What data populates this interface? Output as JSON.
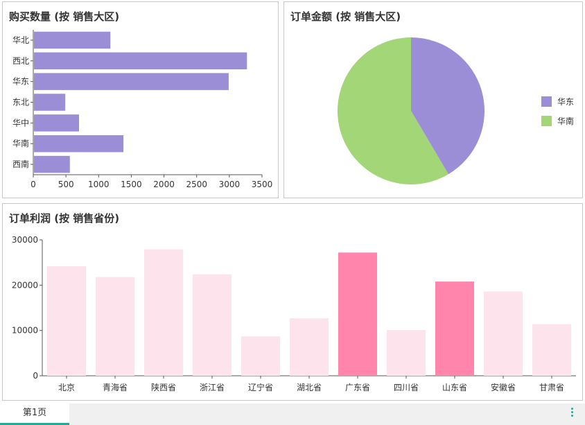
{
  "chart_data": [
    {
      "type": "bar",
      "orientation": "horizontal",
      "title": "购买数量 (按 销售大区)",
      "categories": [
        "华北",
        "西北",
        "华东",
        "东北",
        "华中",
        "华南",
        "西南"
      ],
      "values": [
        1180,
        3270,
        2990,
        490,
        700,
        1380,
        560
      ],
      "xlim": [
        0,
        3500
      ],
      "xticks": [
        0,
        500,
        1000,
        1500,
        2000,
        2500,
        3000,
        3500
      ],
      "color": "#9b8ed6",
      "grid": false
    },
    {
      "type": "pie",
      "title": "订单金额 (按 销售大区)",
      "labels": [
        "华东",
        "华南"
      ],
      "values": [
        41.5,
        58.5
      ],
      "colors": [
        "#9b8ed6",
        "#a3d676"
      ],
      "legend": "right"
    },
    {
      "type": "bar",
      "title": "订单利润 (按 销售省份)",
      "categories": [
        "北京",
        "青海省",
        "陕西省",
        "浙江省",
        "辽宁省",
        "湖北省",
        "广东省",
        "四川省",
        "山东省",
        "安徽省",
        "甘肃省"
      ],
      "values": [
        24200,
        21800,
        27900,
        22400,
        8700,
        12700,
        27200,
        10100,
        20800,
        18600,
        11400
      ],
      "highlighted": [
        false,
        false,
        false,
        false,
        false,
        false,
        true,
        false,
        true,
        false,
        false
      ],
      "ylim": [
        0,
        30000
      ],
      "yticks": [
        0,
        10000,
        20000,
        30000
      ],
      "colors": {
        "normal": "#fde3ec",
        "highlight": "#ff85ad"
      },
      "grid": false
    }
  ],
  "tabs": {
    "page1": "第1页"
  },
  "icons": {
    "more": "more-vertical-icon"
  }
}
